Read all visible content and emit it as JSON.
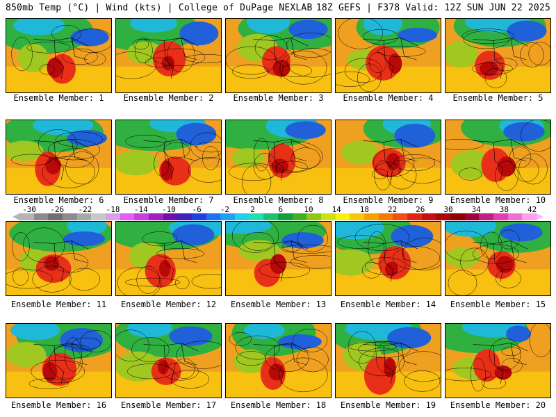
{
  "header": {
    "left": "850mb Temp (°C) | Wind (kts) | College of DuPage NEXLAB",
    "right": "18Z GEFS | F378 Valid: 12Z SUN JUN 22 2025"
  },
  "colorbar": {
    "labels": [
      "-30",
      "-26",
      "-22",
      "-18",
      "-14",
      "-10",
      "-6",
      "-2",
      "2",
      "6",
      "10",
      "14",
      "18",
      "22",
      "26",
      "30",
      "34",
      "38",
      "42"
    ],
    "colors": [
      "#b4b4b4",
      "#8c8c8c",
      "#707070",
      "#8c8c8c",
      "#a8a8a8",
      "#c8c8c8",
      "#d8a0e8",
      "#e060f0",
      "#c840d8",
      "#a020c0",
      "#7010a8",
      "#4020c0",
      "#2040e0",
      "#2070f0",
      "#20a0f0",
      "#20d0e8",
      "#20e0b0",
      "#20c070",
      "#10a040",
      "#40b020",
      "#90c818",
      "#d0e010",
      "#f8f010",
      "#f8c808",
      "#f8a000",
      "#f87800",
      "#f05010",
      "#e02810",
      "#c81010",
      "#a80808",
      "#900000",
      "#a00040",
      "#c02080",
      "#e040b0",
      "#f070d0",
      "#ffa0e8"
    ]
  },
  "panels": [
    {
      "label": "Ensemble Member: 1"
    },
    {
      "label": "Ensemble Member: 2"
    },
    {
      "label": "Ensemble Member: 3"
    },
    {
      "label": "Ensemble Member: 4"
    },
    {
      "label": "Ensemble Member: 5"
    },
    {
      "label": "Ensemble Member: 6"
    },
    {
      "label": "Ensemble Member: 7"
    },
    {
      "label": "Ensemble Member: 8"
    },
    {
      "label": "Ensemble Member: 9"
    },
    {
      "label": "Ensemble Member: 10"
    },
    {
      "label": "Ensemble Member: 11"
    },
    {
      "label": "Ensemble Member: 12"
    },
    {
      "label": "Ensemble Member: 13"
    },
    {
      "label": "Ensemble Member: 14"
    },
    {
      "label": "Ensemble Member: 15"
    },
    {
      "label": "Ensemble Member: 16"
    },
    {
      "label": "Ensemble Member: 17"
    },
    {
      "label": "Ensemble Member: 18"
    },
    {
      "label": "Ensemble Member: 19"
    },
    {
      "label": "Ensemble Member: 20"
    }
  ]
}
